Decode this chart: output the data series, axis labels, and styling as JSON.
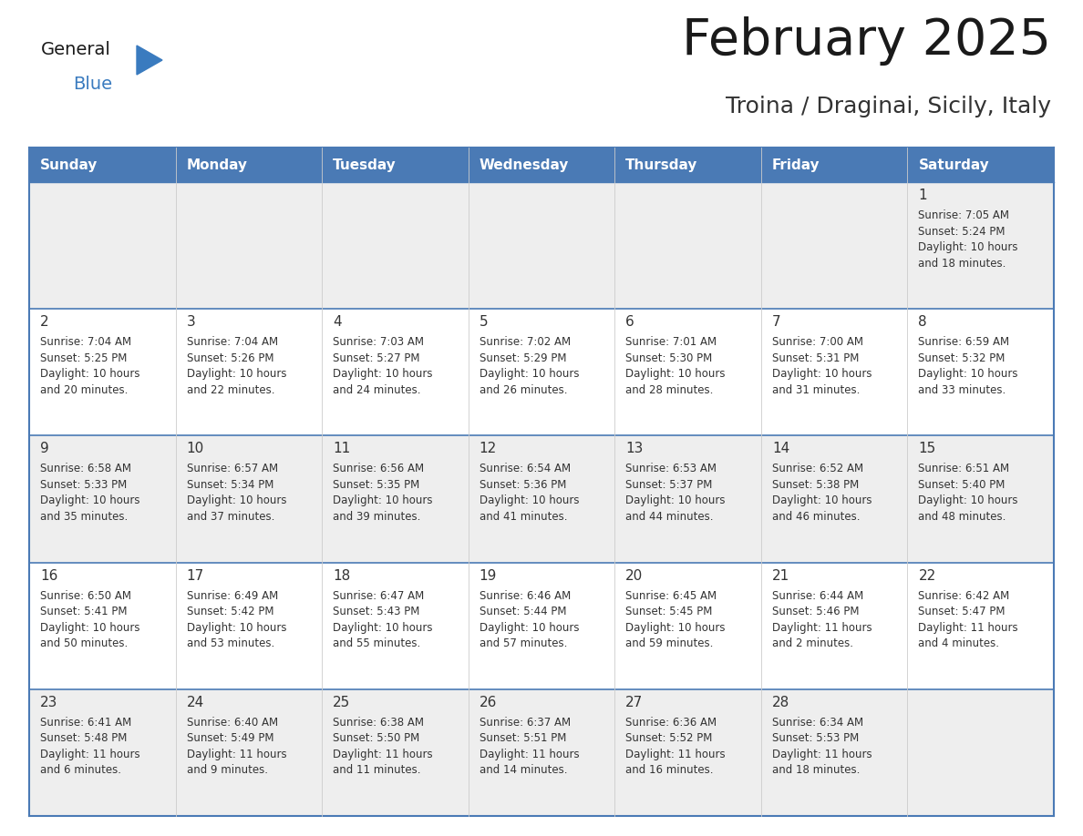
{
  "title": "February 2025",
  "subtitle": "Troina / Draginai, Sicily, Italy",
  "header_bg": "#4a7ab5",
  "header_text": "#ffffff",
  "border_color": "#4a7ab5",
  "cell_bg_light": "#eeeeee",
  "cell_bg_white": "#ffffff",
  "row_divider_color": "#4a7ab5",
  "day_headers": [
    "Sunday",
    "Monday",
    "Tuesday",
    "Wednesday",
    "Thursday",
    "Friday",
    "Saturday"
  ],
  "title_color": "#1a1a1a",
  "subtitle_color": "#333333",
  "cell_text_color": "#333333",
  "day_num_color": "#333333",
  "logo_general_color": "#1a1a1a",
  "logo_blue_color": "#3a7bbf",
  "calendar": [
    [
      null,
      null,
      null,
      null,
      null,
      null,
      {
        "day": 1,
        "sunrise": "7:05 AM",
        "sunset": "5:24 PM",
        "daylight": "10 hours and 18 minutes."
      }
    ],
    [
      {
        "day": 2,
        "sunrise": "7:04 AM",
        "sunset": "5:25 PM",
        "daylight": "10 hours and 20 minutes."
      },
      {
        "day": 3,
        "sunrise": "7:04 AM",
        "sunset": "5:26 PM",
        "daylight": "10 hours and 22 minutes."
      },
      {
        "day": 4,
        "sunrise": "7:03 AM",
        "sunset": "5:27 PM",
        "daylight": "10 hours and 24 minutes."
      },
      {
        "day": 5,
        "sunrise": "7:02 AM",
        "sunset": "5:29 PM",
        "daylight": "10 hours and 26 minutes."
      },
      {
        "day": 6,
        "sunrise": "7:01 AM",
        "sunset": "5:30 PM",
        "daylight": "10 hours and 28 minutes."
      },
      {
        "day": 7,
        "sunrise": "7:00 AM",
        "sunset": "5:31 PM",
        "daylight": "10 hours and 31 minutes."
      },
      {
        "day": 8,
        "sunrise": "6:59 AM",
        "sunset": "5:32 PM",
        "daylight": "10 hours and 33 minutes."
      }
    ],
    [
      {
        "day": 9,
        "sunrise": "6:58 AM",
        "sunset": "5:33 PM",
        "daylight": "10 hours and 35 minutes."
      },
      {
        "day": 10,
        "sunrise": "6:57 AM",
        "sunset": "5:34 PM",
        "daylight": "10 hours and 37 minutes."
      },
      {
        "day": 11,
        "sunrise": "6:56 AM",
        "sunset": "5:35 PM",
        "daylight": "10 hours and 39 minutes."
      },
      {
        "day": 12,
        "sunrise": "6:54 AM",
        "sunset": "5:36 PM",
        "daylight": "10 hours and 41 minutes."
      },
      {
        "day": 13,
        "sunrise": "6:53 AM",
        "sunset": "5:37 PM",
        "daylight": "10 hours and 44 minutes."
      },
      {
        "day": 14,
        "sunrise": "6:52 AM",
        "sunset": "5:38 PM",
        "daylight": "10 hours and 46 minutes."
      },
      {
        "day": 15,
        "sunrise": "6:51 AM",
        "sunset": "5:40 PM",
        "daylight": "10 hours and 48 minutes."
      }
    ],
    [
      {
        "day": 16,
        "sunrise": "6:50 AM",
        "sunset": "5:41 PM",
        "daylight": "10 hours and 50 minutes."
      },
      {
        "day": 17,
        "sunrise": "6:49 AM",
        "sunset": "5:42 PM",
        "daylight": "10 hours and 53 minutes."
      },
      {
        "day": 18,
        "sunrise": "6:47 AM",
        "sunset": "5:43 PM",
        "daylight": "10 hours and 55 minutes."
      },
      {
        "day": 19,
        "sunrise": "6:46 AM",
        "sunset": "5:44 PM",
        "daylight": "10 hours and 57 minutes."
      },
      {
        "day": 20,
        "sunrise": "6:45 AM",
        "sunset": "5:45 PM",
        "daylight": "10 hours and 59 minutes."
      },
      {
        "day": 21,
        "sunrise": "6:44 AM",
        "sunset": "5:46 PM",
        "daylight": "11 hours and 2 minutes."
      },
      {
        "day": 22,
        "sunrise": "6:42 AM",
        "sunset": "5:47 PM",
        "daylight": "11 hours and 4 minutes."
      }
    ],
    [
      {
        "day": 23,
        "sunrise": "6:41 AM",
        "sunset": "5:48 PM",
        "daylight": "11 hours and 6 minutes."
      },
      {
        "day": 24,
        "sunrise": "6:40 AM",
        "sunset": "5:49 PM",
        "daylight": "11 hours and 9 minutes."
      },
      {
        "day": 25,
        "sunrise": "6:38 AM",
        "sunset": "5:50 PM",
        "daylight": "11 hours and 11 minutes."
      },
      {
        "day": 26,
        "sunrise": "6:37 AM",
        "sunset": "5:51 PM",
        "daylight": "11 hours and 14 minutes."
      },
      {
        "day": 27,
        "sunrise": "6:36 AM",
        "sunset": "5:52 PM",
        "daylight": "11 hours and 16 minutes."
      },
      {
        "day": 28,
        "sunrise": "6:34 AM",
        "sunset": "5:53 PM",
        "daylight": "11 hours and 18 minutes."
      },
      null
    ]
  ]
}
